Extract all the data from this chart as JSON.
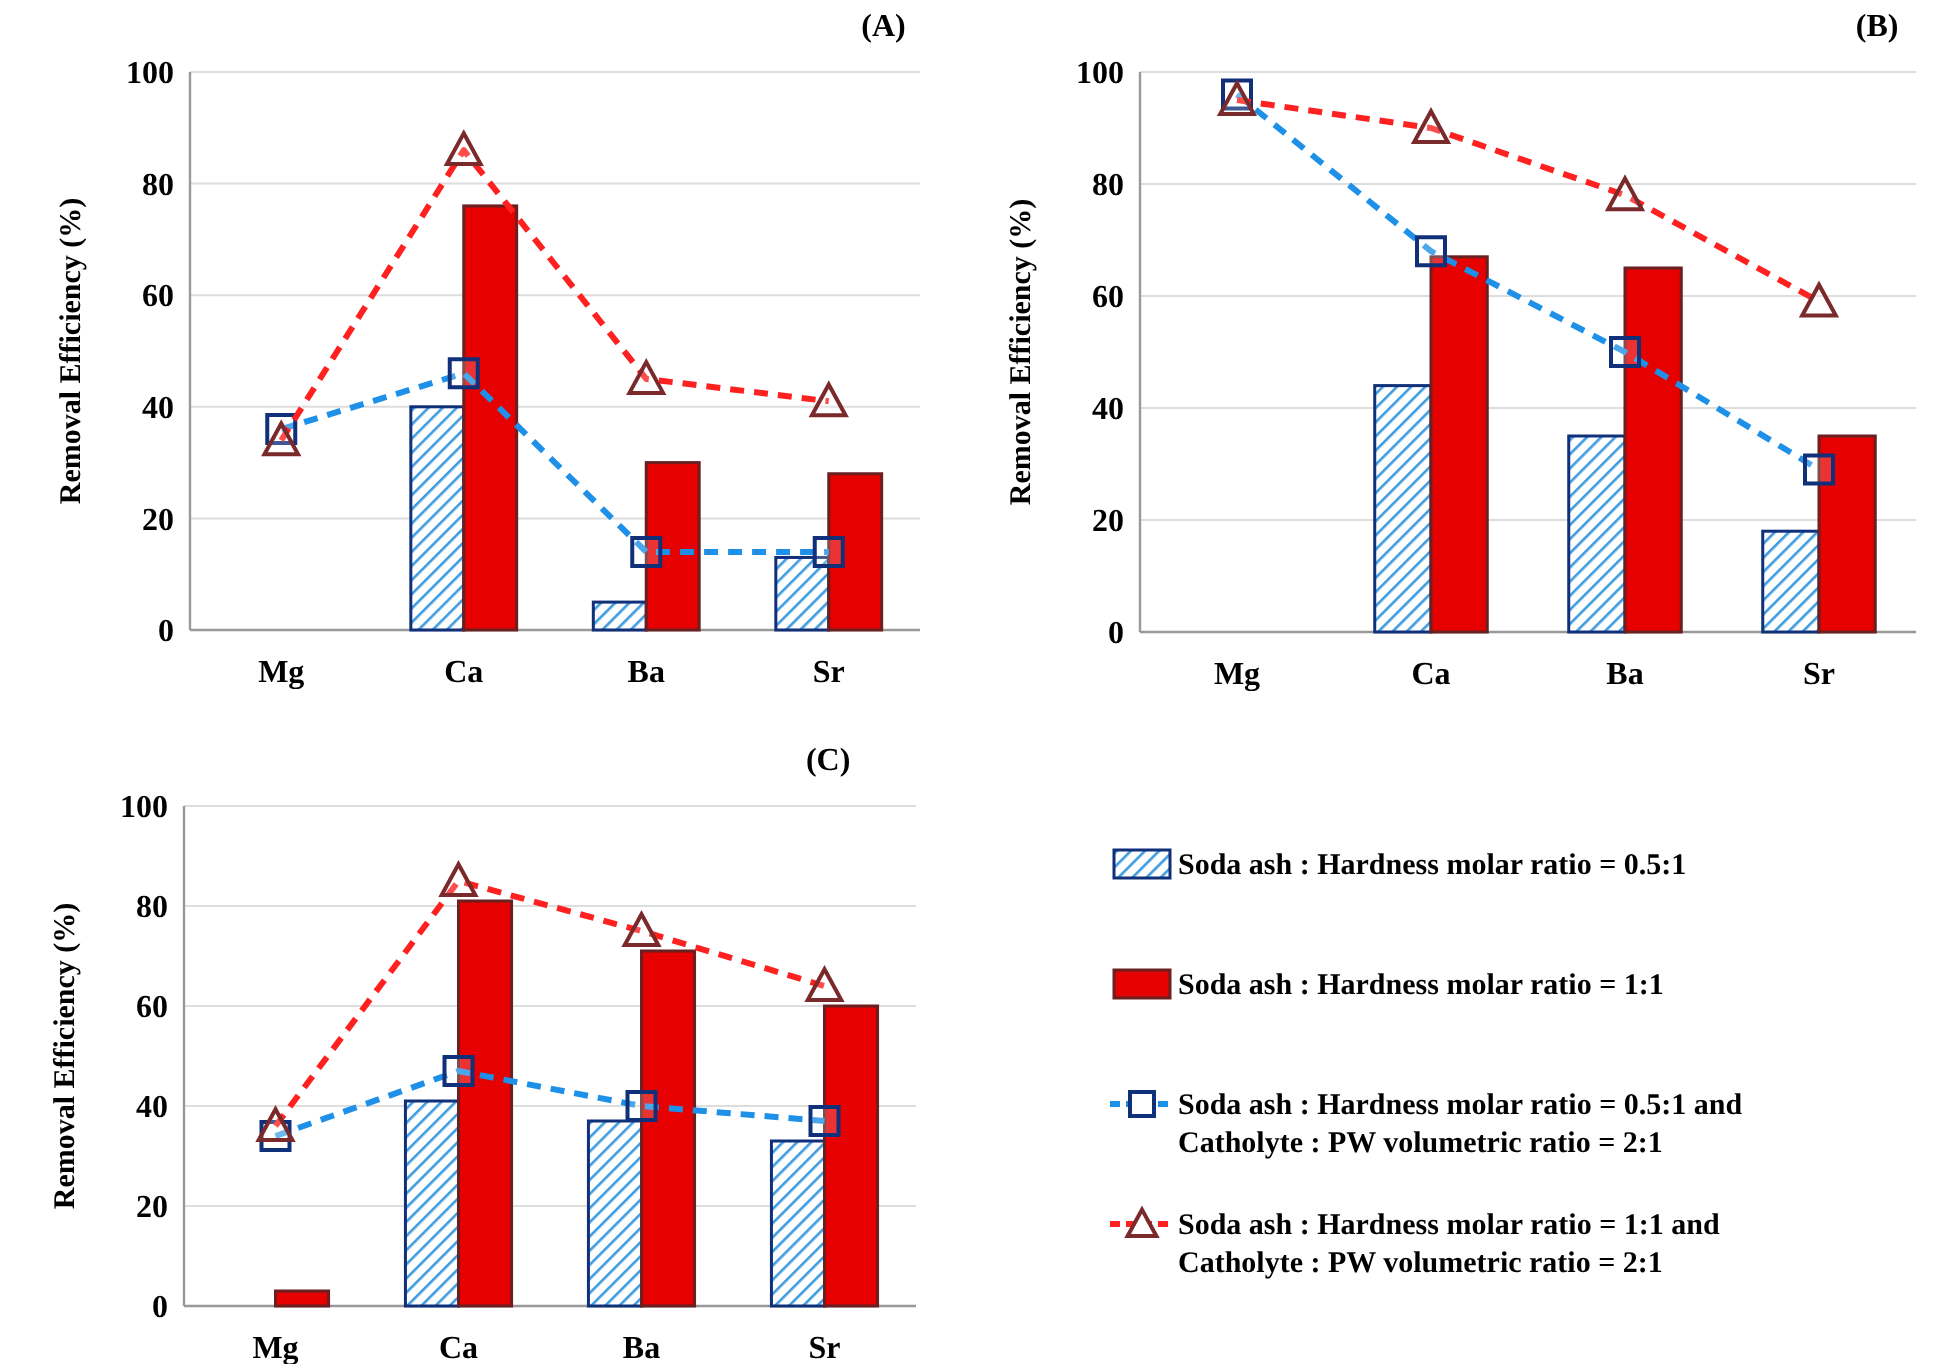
{
  "chart_data": [
    {
      "type": "bar",
      "title": "(A)",
      "ylabel": "Removal Efficiency (%)",
      "categories": [
        "Mg",
        "Ca",
        "Ba",
        "Sr"
      ],
      "ylim": [
        0,
        100
      ],
      "yticks": [
        0,
        20,
        40,
        60,
        80,
        100
      ],
      "grid": "y",
      "legend": false,
      "series": [
        {
          "color": "#10307a",
          "values": [
            null,
            40,
            5,
            13
          ]
        },
        {
          "color": "#e60000",
          "values": [
            null,
            76,
            30,
            28
          ]
        },
        {
          "type": "line",
          "color": "#1e90e8",
          "marker": "square",
          "line_style": "dashed",
          "values": [
            36,
            46,
            14,
            14
          ]
        },
        {
          "type": "line",
          "color": "#ff2020",
          "marker": "triangle",
          "line_style": "dashed",
          "values": [
            34,
            86,
            45,
            41
          ]
        }
      ]
    },
    {
      "type": "bar",
      "title": "(B)",
      "ylabel": "Removal Efficiency (%)",
      "categories": [
        "Mg",
        "Ca",
        "Ba",
        "Sr"
      ],
      "ylim": [
        0,
        100
      ],
      "yticks": [
        0,
        20,
        40,
        60,
        80,
        100
      ],
      "grid": "y",
      "legend": false,
      "series": [
        {
          "color": "#10307a",
          "values": [
            null,
            44,
            35,
            18
          ]
        },
        {
          "color": "#e60000",
          "values": [
            null,
            67,
            65,
            35
          ]
        },
        {
          "type": "line",
          "color": "#1e90e8",
          "marker": "square",
          "line_style": "dashed",
          "values": [
            96,
            68,
            50,
            29
          ]
        },
        {
          "type": "line",
          "color": "#ff2020",
          "marker": "triangle",
          "line_style": "dashed",
          "values": [
            95,
            90,
            78,
            59
          ]
        }
      ]
    },
    {
      "type": "bar",
      "title": "(C)",
      "ylabel": "Removal Efficiency (%)",
      "categories": [
        "Mg",
        "Ca",
        "Ba",
        "Sr"
      ],
      "ylim": [
        0,
        100
      ],
      "yticks": [
        0,
        20,
        40,
        60,
        80,
        100
      ],
      "grid": "y",
      "legend": "right",
      "series": [
        {
          "name": "Soda ash : Hardness molar ratio = 0.5:1",
          "color": "#10307a",
          "values": [
            null,
            41,
            37,
            33
          ]
        },
        {
          "name": "Soda ash : Hardness molar ratio = 1:1",
          "color": "#e60000",
          "values": [
            3,
            81,
            71,
            60
          ]
        },
        {
          "name": "Soda ash : Hardness molar ratio = 0.5:1 and Catholyte : PW volumetric ratio = 2:1",
          "type": "line",
          "color": "#1e90e8",
          "marker": "square",
          "line_style": "dashed",
          "values": [
            34,
            47,
            40,
            37
          ]
        },
        {
          "name": "Soda ash : Hardness molar ratio = 1:1 and Catholyte : PW volumetric ratio = 2:1",
          "type": "line",
          "color": "#ff2020",
          "marker": "triangle",
          "line_style": "dashed",
          "values": [
            36,
            85,
            75,
            64
          ]
        }
      ]
    }
  ]
}
